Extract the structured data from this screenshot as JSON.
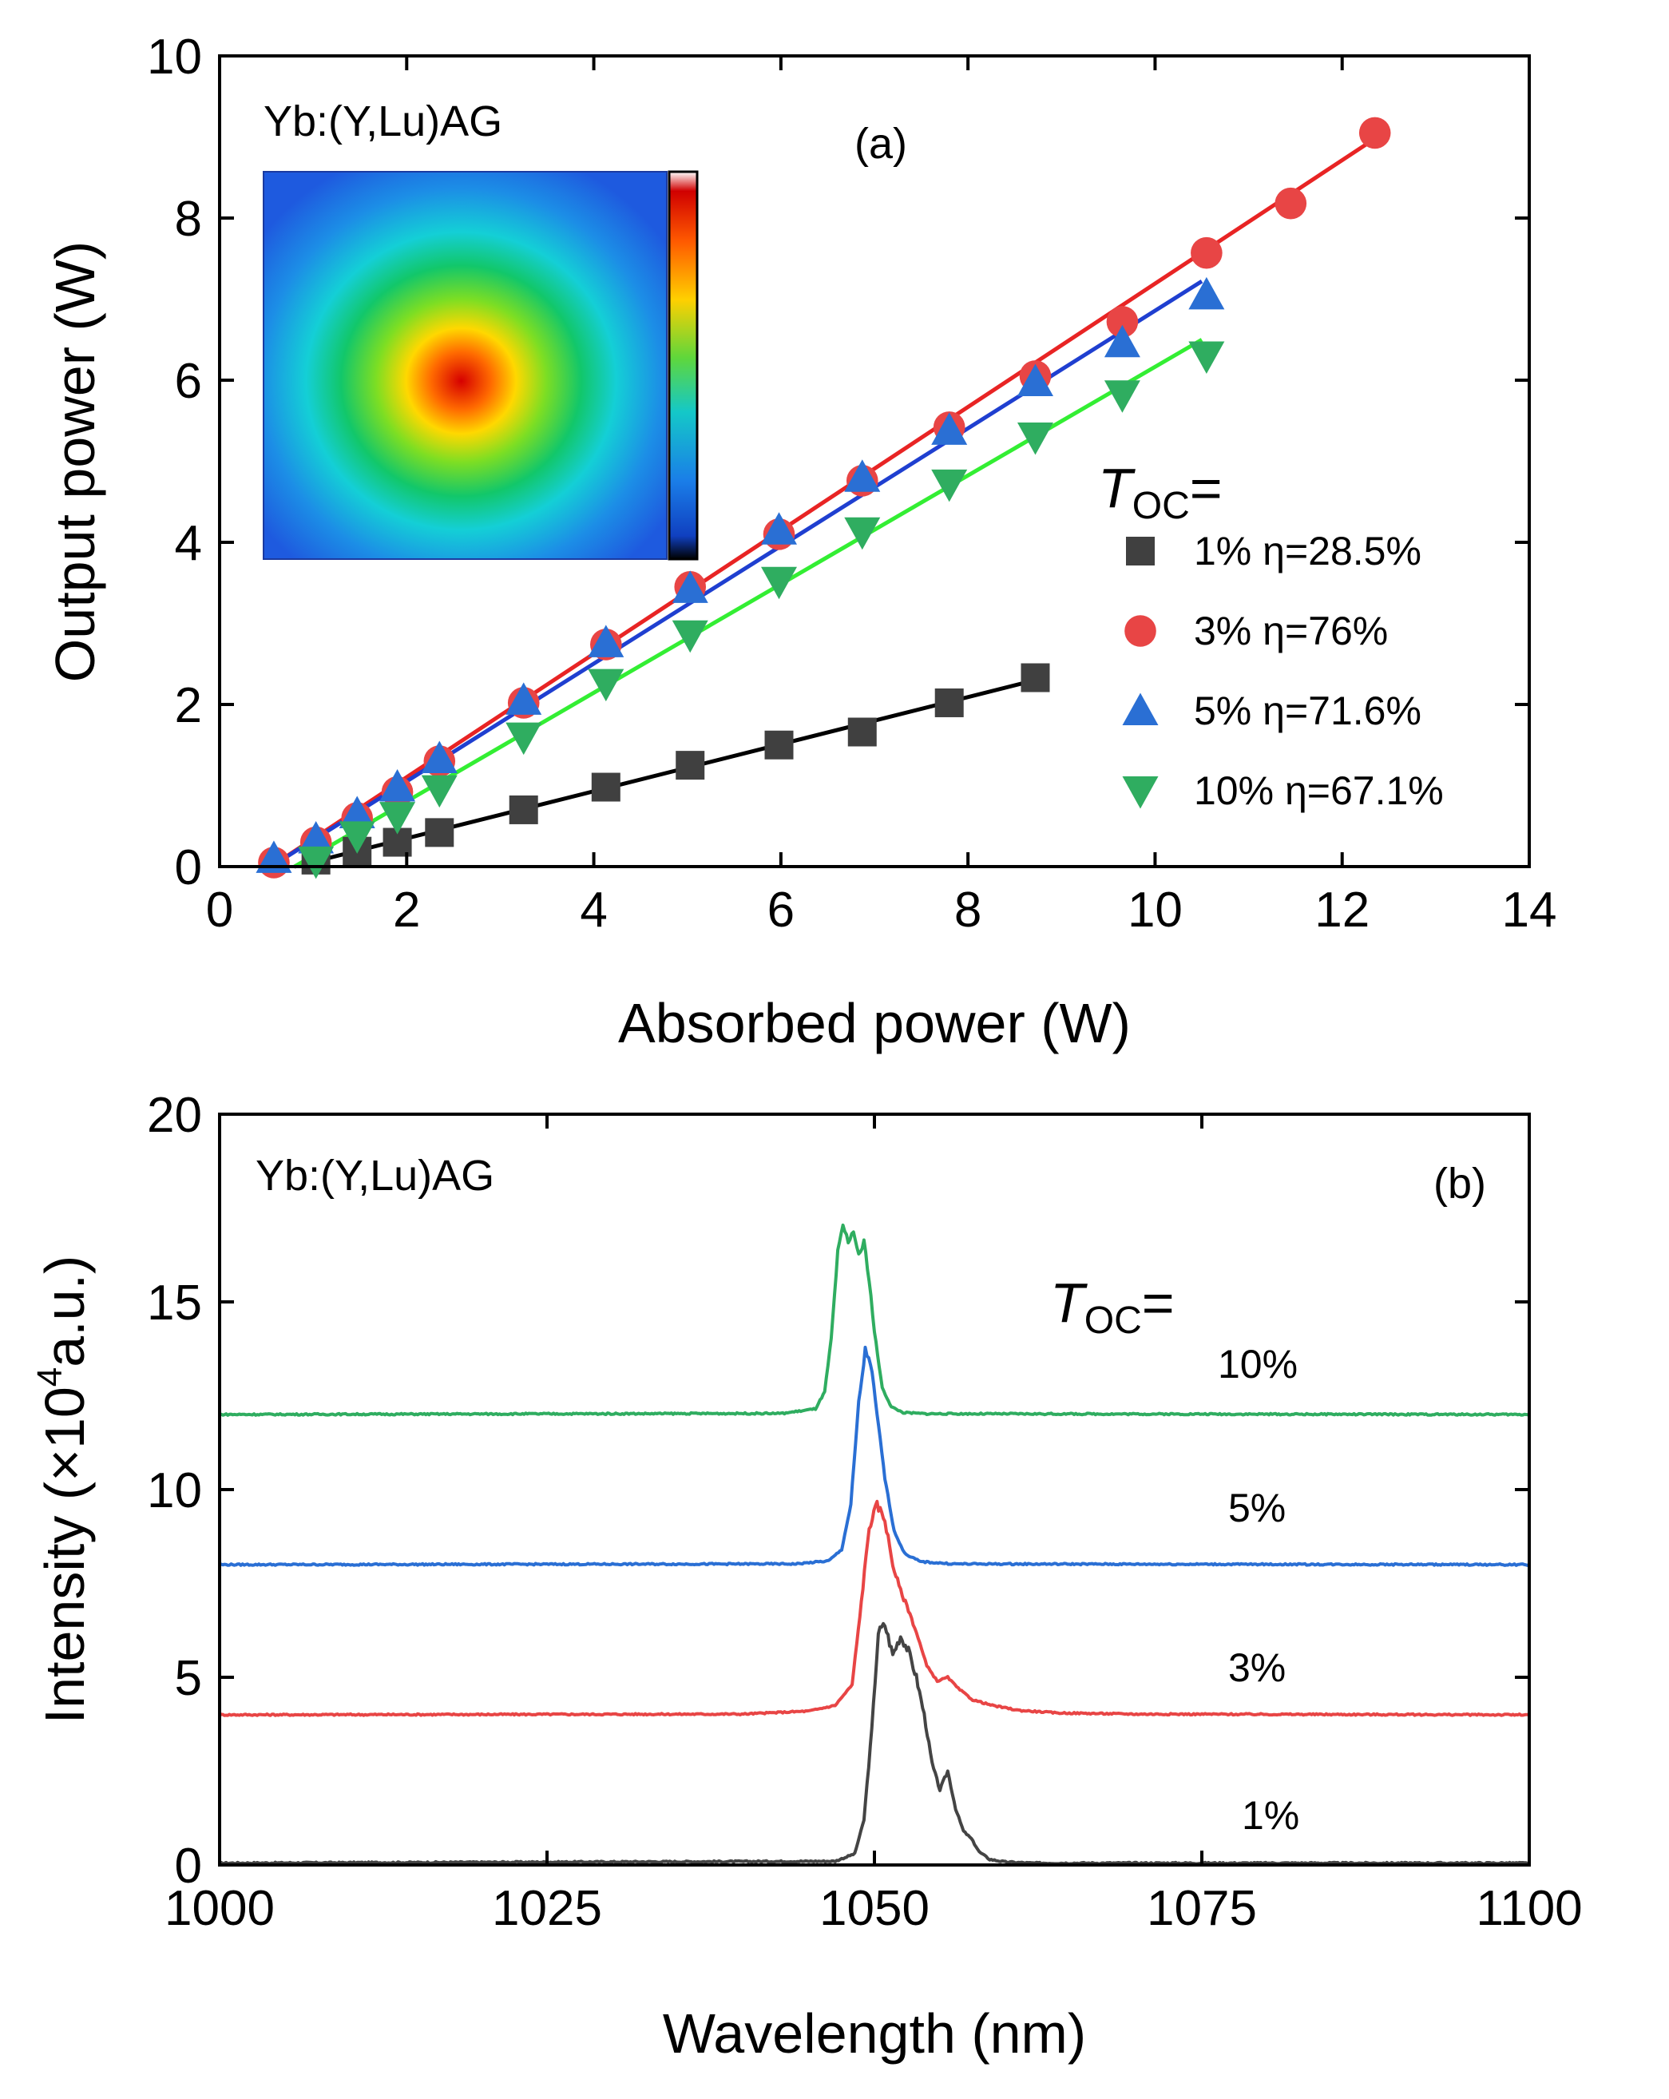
{
  "chart_data": [
    {
      "panel": "(a)",
      "type": "scatter",
      "sample_label": "Yb:(Y,Lu)AG",
      "xlabel": "Absorbed power (W)",
      "ylabel": "Output power (W)",
      "xlim": [
        0,
        14
      ],
      "ylim": [
        0,
        10
      ],
      "xticks": [
        0,
        2,
        4,
        6,
        8,
        10,
        12,
        14
      ],
      "yticks": [
        0,
        2,
        4,
        6,
        8,
        10
      ],
      "legend_title": "T",
      "legend_title_sub": "OC",
      "legend_title_suffix": "=",
      "legend_position": "right",
      "inset": "beam profile color map",
      "series": [
        {
          "name": "1% η=28.5%",
          "marker": "square",
          "color": "#404040",
          "fit_color": "#000000",
          "x": [
            1.03,
            1.47,
            1.9,
            2.35,
            3.25,
            4.13,
            5.03,
            5.98,
            6.87,
            7.8,
            8.72
          ],
          "y": [
            0.08,
            0.19,
            0.3,
            0.42,
            0.7,
            0.98,
            1.25,
            1.5,
            1.66,
            2.02,
            2.33
          ],
          "fit": [
            [
              0.8,
              0.0
            ],
            [
              8.72,
              2.3
            ]
          ]
        },
        {
          "name": "3% η=76%",
          "marker": "circle",
          "color": "#e84545",
          "fit_color": "#e82424",
          "x": [
            0.58,
            1.03,
            1.47,
            1.9,
            2.35,
            3.25,
            4.13,
            5.03,
            5.98,
            6.87,
            7.8,
            8.72,
            9.65,
            10.55,
            11.45,
            12.35
          ],
          "y": [
            0.05,
            0.3,
            0.6,
            0.92,
            1.3,
            2.02,
            2.74,
            3.45,
            4.1,
            4.76,
            5.42,
            6.05,
            6.72,
            7.57,
            8.18,
            9.05
          ],
          "fit": [
            [
              0.55,
              0.0
            ],
            [
              12.35,
              8.98
            ]
          ]
        },
        {
          "name": "5% η=71.6%",
          "marker": "triangle-up",
          "color": "#2a6fd4",
          "fit_color": "#1f3fd0",
          "x": [
            0.58,
            1.03,
            1.47,
            1.9,
            2.35,
            3.25,
            4.13,
            5.03,
            5.98,
            6.87,
            7.8,
            8.72,
            9.65,
            10.55
          ],
          "y": [
            0.1,
            0.34,
            0.65,
            0.98,
            1.33,
            2.05,
            2.76,
            3.43,
            4.15,
            4.8,
            5.38,
            5.98,
            6.46,
            7.05
          ],
          "fit": [
            [
              0.55,
              0.0
            ],
            [
              10.5,
              7.22
            ]
          ]
        },
        {
          "name": "10% η=67.1%",
          "marker": "triangle-down",
          "color": "#2fad60",
          "fit_color": "#33ee33",
          "x": [
            1.03,
            1.47,
            1.9,
            2.35,
            3.25,
            4.13,
            5.03,
            5.98,
            6.87,
            7.8,
            8.72,
            9.65,
            10.55
          ],
          "y": [
            0.07,
            0.38,
            0.62,
            0.95,
            1.6,
            2.26,
            2.86,
            3.52,
            4.13,
            4.72,
            5.3,
            5.82,
            6.3
          ],
          "fit": [
            [
              0.8,
              0.0
            ],
            [
              10.5,
              6.5
            ]
          ]
        }
      ]
    },
    {
      "panel": "(b)",
      "type": "line",
      "sample_label": "Yb:(Y,Lu)AG",
      "xlabel": "Wavelength (nm)",
      "ylabel_parts": [
        "Intensity (×10",
        "4",
        "a.u.)"
      ],
      "xlim": [
        1000,
        1100
      ],
      "ylim": [
        0,
        20
      ],
      "xticks": [
        1000,
        1025,
        1050,
        1075,
        1100
      ],
      "yticks": [
        0,
        5,
        10,
        15,
        20
      ],
      "legend_title": "T",
      "legend_title_sub": "OC",
      "legend_title_suffix": "=",
      "series": [
        {
          "name": "1%",
          "color": "#444444",
          "baseline": 0.05,
          "x": [
            1000,
            1047,
            1048.5,
            1049.2,
            1049.8,
            1050.3,
            1050.8,
            1051.4,
            1052.0,
            1052.6,
            1053.2,
            1053.8,
            1054.4,
            1055.0,
            1055.6,
            1056.2,
            1056.8,
            1057.4,
            1058.0,
            1058.8,
            1060,
            1062,
            1100
          ],
          "y": [
            0.05,
            0.1,
            0.3,
            1.2,
            3.6,
            6.2,
            6.4,
            5.6,
            6.1,
            5.7,
            5.0,
            4.0,
            2.7,
            2.0,
            2.5,
            1.5,
            0.9,
            0.7,
            0.35,
            0.15,
            0.08,
            0.05,
            0.05
          ]
        },
        {
          "name": "3%",
          "color": "#e84545",
          "baseline": 4.0,
          "x": [
            1000,
            1040,
            1045,
            1047,
            1048.3,
            1049.0,
            1049.6,
            1050.2,
            1050.8,
            1051.4,
            1052.0,
            1052.6,
            1053.2,
            1054.0,
            1054.8,
            1055.6,
            1056.4,
            1057.5,
            1059,
            1061,
            1064,
            1070,
            1100
          ],
          "y": [
            4.0,
            4.02,
            4.1,
            4.25,
            4.8,
            7.0,
            9.0,
            9.6,
            9.2,
            8.0,
            7.3,
            6.8,
            6.2,
            5.3,
            4.9,
            5.0,
            4.7,
            4.4,
            4.25,
            4.12,
            4.05,
            4.02,
            4.0
          ]
        },
        {
          "name": "5%",
          "color": "#2a6fd4",
          "baseline": 8.0,
          "x": [
            1000,
            1044,
            1046.5,
            1047.5,
            1048.2,
            1048.8,
            1049.3,
            1049.7,
            1050.2,
            1050.8,
            1051.5,
            1052.3,
            1053.5,
            1056,
            1100
          ],
          "y": [
            8.0,
            8.02,
            8.1,
            8.4,
            9.6,
            12.3,
            13.7,
            13.4,
            12.0,
            10.3,
            8.9,
            8.3,
            8.08,
            8.02,
            8.0
          ]
        },
        {
          "name": "10%",
          "color": "#2fad60",
          "baseline": 12.0,
          "x": [
            1000,
            1043,
            1045.5,
            1046.2,
            1046.7,
            1047.2,
            1047.6,
            1048.0,
            1048.4,
            1048.8,
            1049.2,
            1049.6,
            1050.0,
            1050.6,
            1051.3,
            1052.2,
            1054,
            1100
          ],
          "y": [
            12.0,
            12.03,
            12.15,
            12.6,
            14.0,
            16.3,
            17.0,
            16.6,
            16.9,
            16.2,
            16.6,
            15.6,
            14.2,
            12.7,
            12.2,
            12.05,
            12.02,
            12.0
          ]
        }
      ]
    }
  ]
}
